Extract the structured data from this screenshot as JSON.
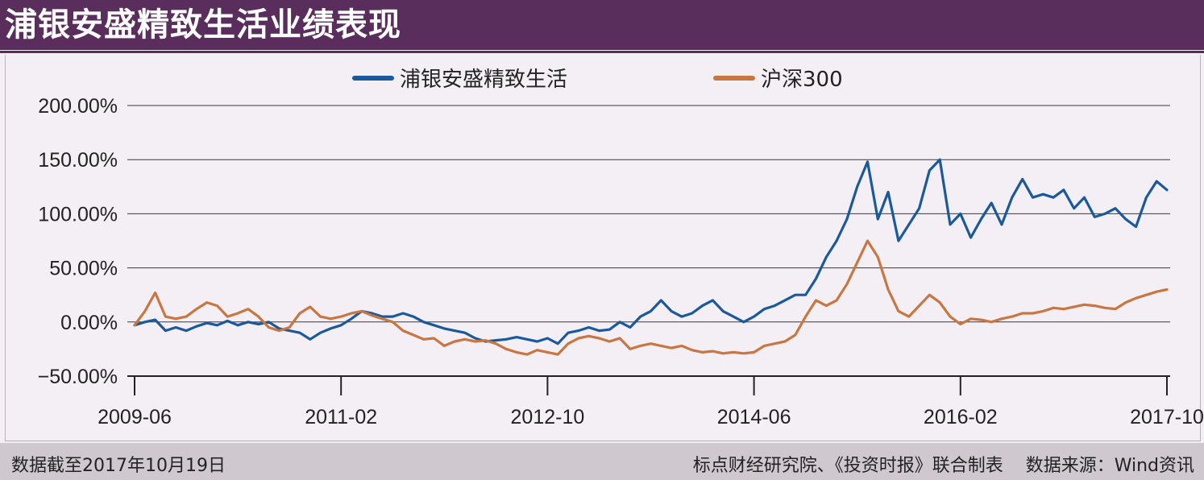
{
  "header": {
    "title": "浦银安盛精致生活业绩表现"
  },
  "footer": {
    "note": "数据截至2017年10月19日",
    "source": "标点财经研究院、《投资时报》联合制表    数据来源：Wind资讯"
  },
  "chart_data": {
    "type": "line",
    "title": "",
    "xlabel": "",
    "ylabel": "",
    "ylim": [
      -50,
      200
    ],
    "y_ticks": [
      -50,
      0,
      50,
      100,
      150,
      200
    ],
    "y_tick_labels": [
      "−50.00%",
      "0.00%",
      "50.00%",
      "100.00%",
      "150.00%",
      "200.00%"
    ],
    "x_tick_labels": [
      "2009-06",
      "2011-02",
      "2012-10",
      "2014-06",
      "2016-02",
      "2017-10"
    ],
    "x_tick_dates": [
      "2009-06",
      "2011-02",
      "2012-10",
      "2014-06",
      "2016-02",
      "2017-10"
    ],
    "grid": true,
    "legend_position": "top-center",
    "series": [
      {
        "name": "浦银安盛精致生活",
        "color": "#1a5a9c",
        "points": [
          [
            "2009-06",
            -3
          ],
          [
            "2009-07",
            0
          ],
          [
            "2009-08",
            2
          ],
          [
            "2009-09",
            -8
          ],
          [
            "2009-10",
            -5
          ],
          [
            "2009-11",
            -8
          ],
          [
            "2009-12",
            -4
          ],
          [
            "2010-01",
            -1
          ],
          [
            "2010-02",
            -3
          ],
          [
            "2010-03",
            1
          ],
          [
            "2010-04",
            -3
          ],
          [
            "2010-05",
            0
          ],
          [
            "2010-06",
            -2
          ],
          [
            "2010-07",
            0
          ],
          [
            "2010-08",
            -6
          ],
          [
            "2010-09",
            -8
          ],
          [
            "2010-10",
            -10
          ],
          [
            "2010-11",
            -16
          ],
          [
            "2010-12",
            -10
          ],
          [
            "2011-01",
            -6
          ],
          [
            "2011-02",
            -3
          ],
          [
            "2011-03",
            3
          ],
          [
            "2011-04",
            10
          ],
          [
            "2011-05",
            8
          ],
          [
            "2011-06",
            5
          ],
          [
            "2011-07",
            5
          ],
          [
            "2011-08",
            8
          ],
          [
            "2011-09",
            5
          ],
          [
            "2011-10",
            0
          ],
          [
            "2011-11",
            -3
          ],
          [
            "2011-12",
            -6
          ],
          [
            "2012-01",
            -8
          ],
          [
            "2012-02",
            -10
          ],
          [
            "2012-03",
            -15
          ],
          [
            "2012-04",
            -18
          ],
          [
            "2012-05",
            -17
          ],
          [
            "2012-06",
            -16
          ],
          [
            "2012-07",
            -14
          ],
          [
            "2012-08",
            -16
          ],
          [
            "2012-09",
            -18
          ],
          [
            "2012-10",
            -15
          ],
          [
            "2012-11",
            -20
          ],
          [
            "2012-12",
            -10
          ],
          [
            "2013-01",
            -8
          ],
          [
            "2013-02",
            -5
          ],
          [
            "2013-03",
            -8
          ],
          [
            "2013-04",
            -7
          ],
          [
            "2013-05",
            0
          ],
          [
            "2013-06",
            -5
          ],
          [
            "2013-07",
            5
          ],
          [
            "2013-08",
            10
          ],
          [
            "2013-09",
            20
          ],
          [
            "2013-10",
            10
          ],
          [
            "2013-11",
            5
          ],
          [
            "2013-12",
            8
          ],
          [
            "2014-01",
            15
          ],
          [
            "2014-02",
            20
          ],
          [
            "2014-03",
            10
          ],
          [
            "2014-04",
            5
          ],
          [
            "2014-05",
            0
          ],
          [
            "2014-06",
            5
          ],
          [
            "2014-07",
            12
          ],
          [
            "2014-08",
            15
          ],
          [
            "2014-09",
            20
          ],
          [
            "2014-10",
            25
          ],
          [
            "2014-11",
            25
          ],
          [
            "2014-12",
            40
          ],
          [
            "2015-01",
            60
          ],
          [
            "2015-02",
            75
          ],
          [
            "2015-03",
            95
          ],
          [
            "2015-04",
            125
          ],
          [
            "2015-05",
            148
          ],
          [
            "2015-06",
            95
          ],
          [
            "2015-07",
            120
          ],
          [
            "2015-08",
            75
          ],
          [
            "2015-09",
            90
          ],
          [
            "2015-10",
            105
          ],
          [
            "2015-11",
            140
          ],
          [
            "2015-12",
            150
          ],
          [
            "2016-01",
            90
          ],
          [
            "2016-02",
            100
          ],
          [
            "2016-03",
            78
          ],
          [
            "2016-04",
            95
          ],
          [
            "2016-05",
            110
          ],
          [
            "2016-06",
            90
          ],
          [
            "2016-07",
            115
          ],
          [
            "2016-08",
            132
          ],
          [
            "2016-09",
            115
          ],
          [
            "2016-10",
            118
          ],
          [
            "2016-11",
            115
          ],
          [
            "2016-12",
            122
          ],
          [
            "2017-01",
            105
          ],
          [
            "2017-02",
            115
          ],
          [
            "2017-03",
            97
          ],
          [
            "2017-04",
            100
          ],
          [
            "2017-05",
            105
          ],
          [
            "2017-06",
            95
          ],
          [
            "2017-07",
            88
          ],
          [
            "2017-08",
            115
          ],
          [
            "2017-09",
            130
          ],
          [
            "2017-10",
            122
          ]
        ]
      },
      {
        "name": "沪深300",
        "color": "#c87642",
        "points": [
          [
            "2009-06",
            -3
          ],
          [
            "2009-07",
            10
          ],
          [
            "2009-08",
            27
          ],
          [
            "2009-09",
            5
          ],
          [
            "2009-10",
            3
          ],
          [
            "2009-11",
            5
          ],
          [
            "2009-12",
            12
          ],
          [
            "2010-01",
            18
          ],
          [
            "2010-02",
            15
          ],
          [
            "2010-03",
            5
          ],
          [
            "2010-04",
            8
          ],
          [
            "2010-05",
            12
          ],
          [
            "2010-06",
            5
          ],
          [
            "2010-07",
            -5
          ],
          [
            "2010-08",
            -8
          ],
          [
            "2010-09",
            -5
          ],
          [
            "2010-10",
            8
          ],
          [
            "2010-11",
            14
          ],
          [
            "2010-12",
            5
          ],
          [
            "2011-01",
            3
          ],
          [
            "2011-02",
            5
          ],
          [
            "2011-03",
            8
          ],
          [
            "2011-04",
            10
          ],
          [
            "2011-05",
            6
          ],
          [
            "2011-06",
            3
          ],
          [
            "2011-07",
            0
          ],
          [
            "2011-08",
            -8
          ],
          [
            "2011-09",
            -12
          ],
          [
            "2011-10",
            -16
          ],
          [
            "2011-11",
            -15
          ],
          [
            "2011-12",
            -22
          ],
          [
            "2012-01",
            -18
          ],
          [
            "2012-02",
            -16
          ],
          [
            "2012-03",
            -18
          ],
          [
            "2012-04",
            -17
          ],
          [
            "2012-05",
            -20
          ],
          [
            "2012-06",
            -25
          ],
          [
            "2012-07",
            -28
          ],
          [
            "2012-08",
            -30
          ],
          [
            "2012-09",
            -26
          ],
          [
            "2012-10",
            -28
          ],
          [
            "2012-11",
            -30
          ],
          [
            "2012-12",
            -20
          ],
          [
            "2013-01",
            -15
          ],
          [
            "2013-02",
            -13
          ],
          [
            "2013-03",
            -15
          ],
          [
            "2013-04",
            -18
          ],
          [
            "2013-05",
            -15
          ],
          [
            "2013-06",
            -25
          ],
          [
            "2013-07",
            -22
          ],
          [
            "2013-08",
            -20
          ],
          [
            "2013-09",
            -22
          ],
          [
            "2013-10",
            -24
          ],
          [
            "2013-11",
            -22
          ],
          [
            "2013-12",
            -26
          ],
          [
            "2014-01",
            -28
          ],
          [
            "2014-02",
            -27
          ],
          [
            "2014-03",
            -29
          ],
          [
            "2014-04",
            -28
          ],
          [
            "2014-05",
            -29
          ],
          [
            "2014-06",
            -28
          ],
          [
            "2014-07",
            -22
          ],
          [
            "2014-08",
            -20
          ],
          [
            "2014-09",
            -18
          ],
          [
            "2014-10",
            -12
          ],
          [
            "2014-11",
            5
          ],
          [
            "2014-12",
            20
          ],
          [
            "2015-01",
            15
          ],
          [
            "2015-02",
            20
          ],
          [
            "2015-03",
            35
          ],
          [
            "2015-04",
            55
          ],
          [
            "2015-05",
            75
          ],
          [
            "2015-06",
            60
          ],
          [
            "2015-07",
            30
          ],
          [
            "2015-08",
            10
          ],
          [
            "2015-09",
            5
          ],
          [
            "2015-10",
            15
          ],
          [
            "2015-11",
            25
          ],
          [
            "2015-12",
            18
          ],
          [
            "2016-01",
            5
          ],
          [
            "2016-02",
            -2
          ],
          [
            "2016-03",
            3
          ],
          [
            "2016-04",
            2
          ],
          [
            "2016-05",
            0
          ],
          [
            "2016-06",
            3
          ],
          [
            "2016-07",
            5
          ],
          [
            "2016-08",
            8
          ],
          [
            "2016-09",
            8
          ],
          [
            "2016-10",
            10
          ],
          [
            "2016-11",
            13
          ],
          [
            "2016-12",
            12
          ],
          [
            "2017-01",
            14
          ],
          [
            "2017-02",
            16
          ],
          [
            "2017-03",
            15
          ],
          [
            "2017-04",
            13
          ],
          [
            "2017-05",
            12
          ],
          [
            "2017-06",
            18
          ],
          [
            "2017-07",
            22
          ],
          [
            "2017-08",
            25
          ],
          [
            "2017-09",
            28
          ],
          [
            "2017-10",
            30
          ]
        ]
      }
    ]
  }
}
